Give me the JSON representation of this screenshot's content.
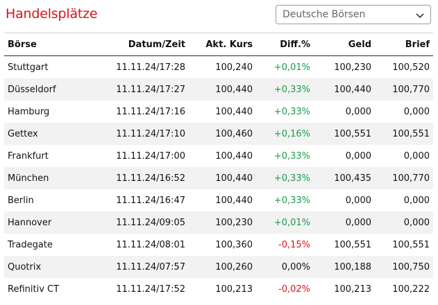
{
  "header": {
    "title": "Handelsplätze",
    "exchange_select": {
      "value": "Deutsche Börsen"
    }
  },
  "table": {
    "columns": [
      "Börse",
      "Datum/Zeit",
      "Akt. Kurs",
      "Diff.%",
      "Geld",
      "Brief"
    ],
    "rows": [
      [
        "Stuttgart",
        "11.11.24/17:28",
        "100,240",
        "+0,01%",
        "100,230",
        "100,520"
      ],
      [
        "Düsseldorf",
        "11.11.24/17:27",
        "100,440",
        "+0,33%",
        "100,440",
        "100,770"
      ],
      [
        "Hamburg",
        "11.11.24/17:16",
        "100,440",
        "+0,33%",
        "0,000",
        "0,000"
      ],
      [
        "Gettex",
        "11.11.24/17:10",
        "100,460",
        "+0,16%",
        "100,551",
        "100,551"
      ],
      [
        "Frankfurt",
        "11.11.24/17:00",
        "100,440",
        "+0,33%",
        "0,000",
        "0,000"
      ],
      [
        "München",
        "11.11.24/16:52",
        "100,440",
        "+0,33%",
        "100,435",
        "100,770"
      ],
      [
        "Berlin",
        "11.11.24/16:47",
        "100,440",
        "+0,33%",
        "0,000",
        "0,000"
      ],
      [
        "Hannover",
        "11.11.24/09:05",
        "100,230",
        "+0,01%",
        "0,000",
        "0,000"
      ],
      [
        "Tradegate",
        "11.11.24/08:01",
        "100,360",
        "-0,15%",
        "100,551",
        "100,551"
      ],
      [
        "Quotrix",
        "11.11.24/07:57",
        "100,260",
        "0,00%",
        "100,188",
        "100,750"
      ],
      [
        "Refinitiv CT",
        "11.11.24/17:52",
        "100,213",
        "-0,02%",
        "100,213",
        "100,222"
      ]
    ]
  },
  "colors": {
    "title": "#d9121b",
    "positive": "#1a9b4b",
    "negative": "#d9121b",
    "neutral": "#111111",
    "stripe": "#f2f2f2"
  },
  "icons": {
    "select_chevron": "chevron-down-icon"
  }
}
